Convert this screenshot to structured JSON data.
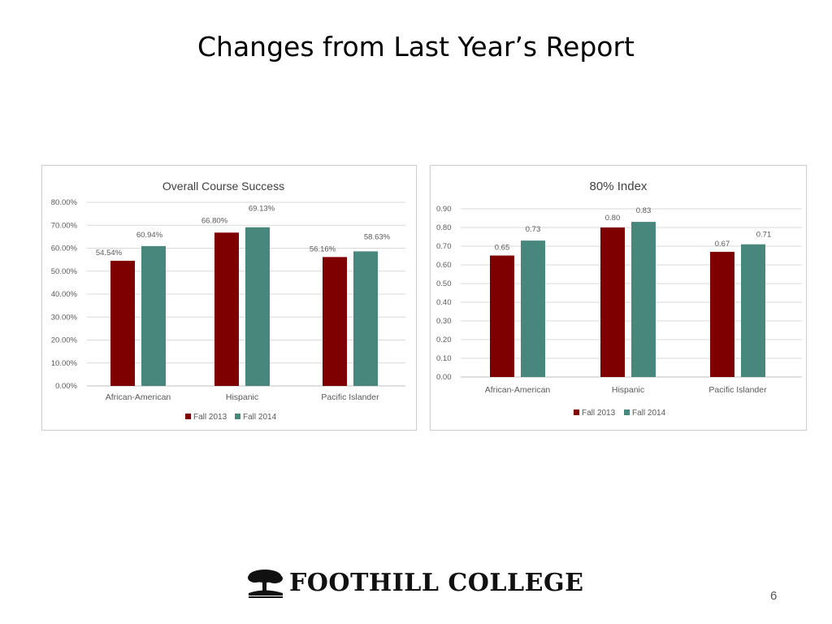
{
  "slide": {
    "title": "Changes from Last Year’s Report",
    "logo_text": "FOOTHILL COLLEGE",
    "page_number": "6"
  },
  "colors": {
    "fall_2013": "#7f0000",
    "fall_2014": "#48877b",
    "grid": "#d9d9d9",
    "text": "#595959"
  },
  "chart_data": [
    {
      "type": "bar",
      "title": "Overall Course Success",
      "categories": [
        "African-American",
        "Hispanic",
        "Pacific Islander"
      ],
      "series": [
        {
          "name": "Fall 2013",
          "values": [
            54.54,
            66.8,
            56.16
          ],
          "labels": [
            "54.54%",
            "66.80%",
            "56.16%"
          ]
        },
        {
          "name": "Fall 2014",
          "values": [
            60.94,
            69.13,
            58.63
          ],
          "labels": [
            "60.94%",
            "69.13%",
            "58.63%"
          ]
        }
      ],
      "ylim": [
        0,
        80
      ],
      "ytick_labels": [
        "0.00%",
        "10.00%",
        "20.00%",
        "30.00%",
        "40.00%",
        "50.00%",
        "60.00%",
        "70.00%",
        "80.00%"
      ],
      "grid": true,
      "legend": "bottom"
    },
    {
      "type": "bar",
      "title": "80% Index",
      "categories": [
        "African-American",
        "Hispanic",
        "Pacific Islander"
      ],
      "series": [
        {
          "name": "Fall 2013",
          "values": [
            0.65,
            0.8,
            0.67
          ],
          "labels": [
            "0.65",
            "0.80",
            "0.67"
          ]
        },
        {
          "name": "Fall 2014",
          "values": [
            0.73,
            0.83,
            0.71
          ],
          "labels": [
            "0.73",
            "0.83",
            "0.71"
          ]
        }
      ],
      "ylim": [
        0,
        0.9
      ],
      "ytick_labels": [
        "0.00",
        "0.10",
        "0.20",
        "0.30",
        "0.40",
        "0.50",
        "0.60",
        "0.70",
        "0.80",
        "0.90"
      ],
      "grid": true,
      "legend": "bottom"
    }
  ]
}
